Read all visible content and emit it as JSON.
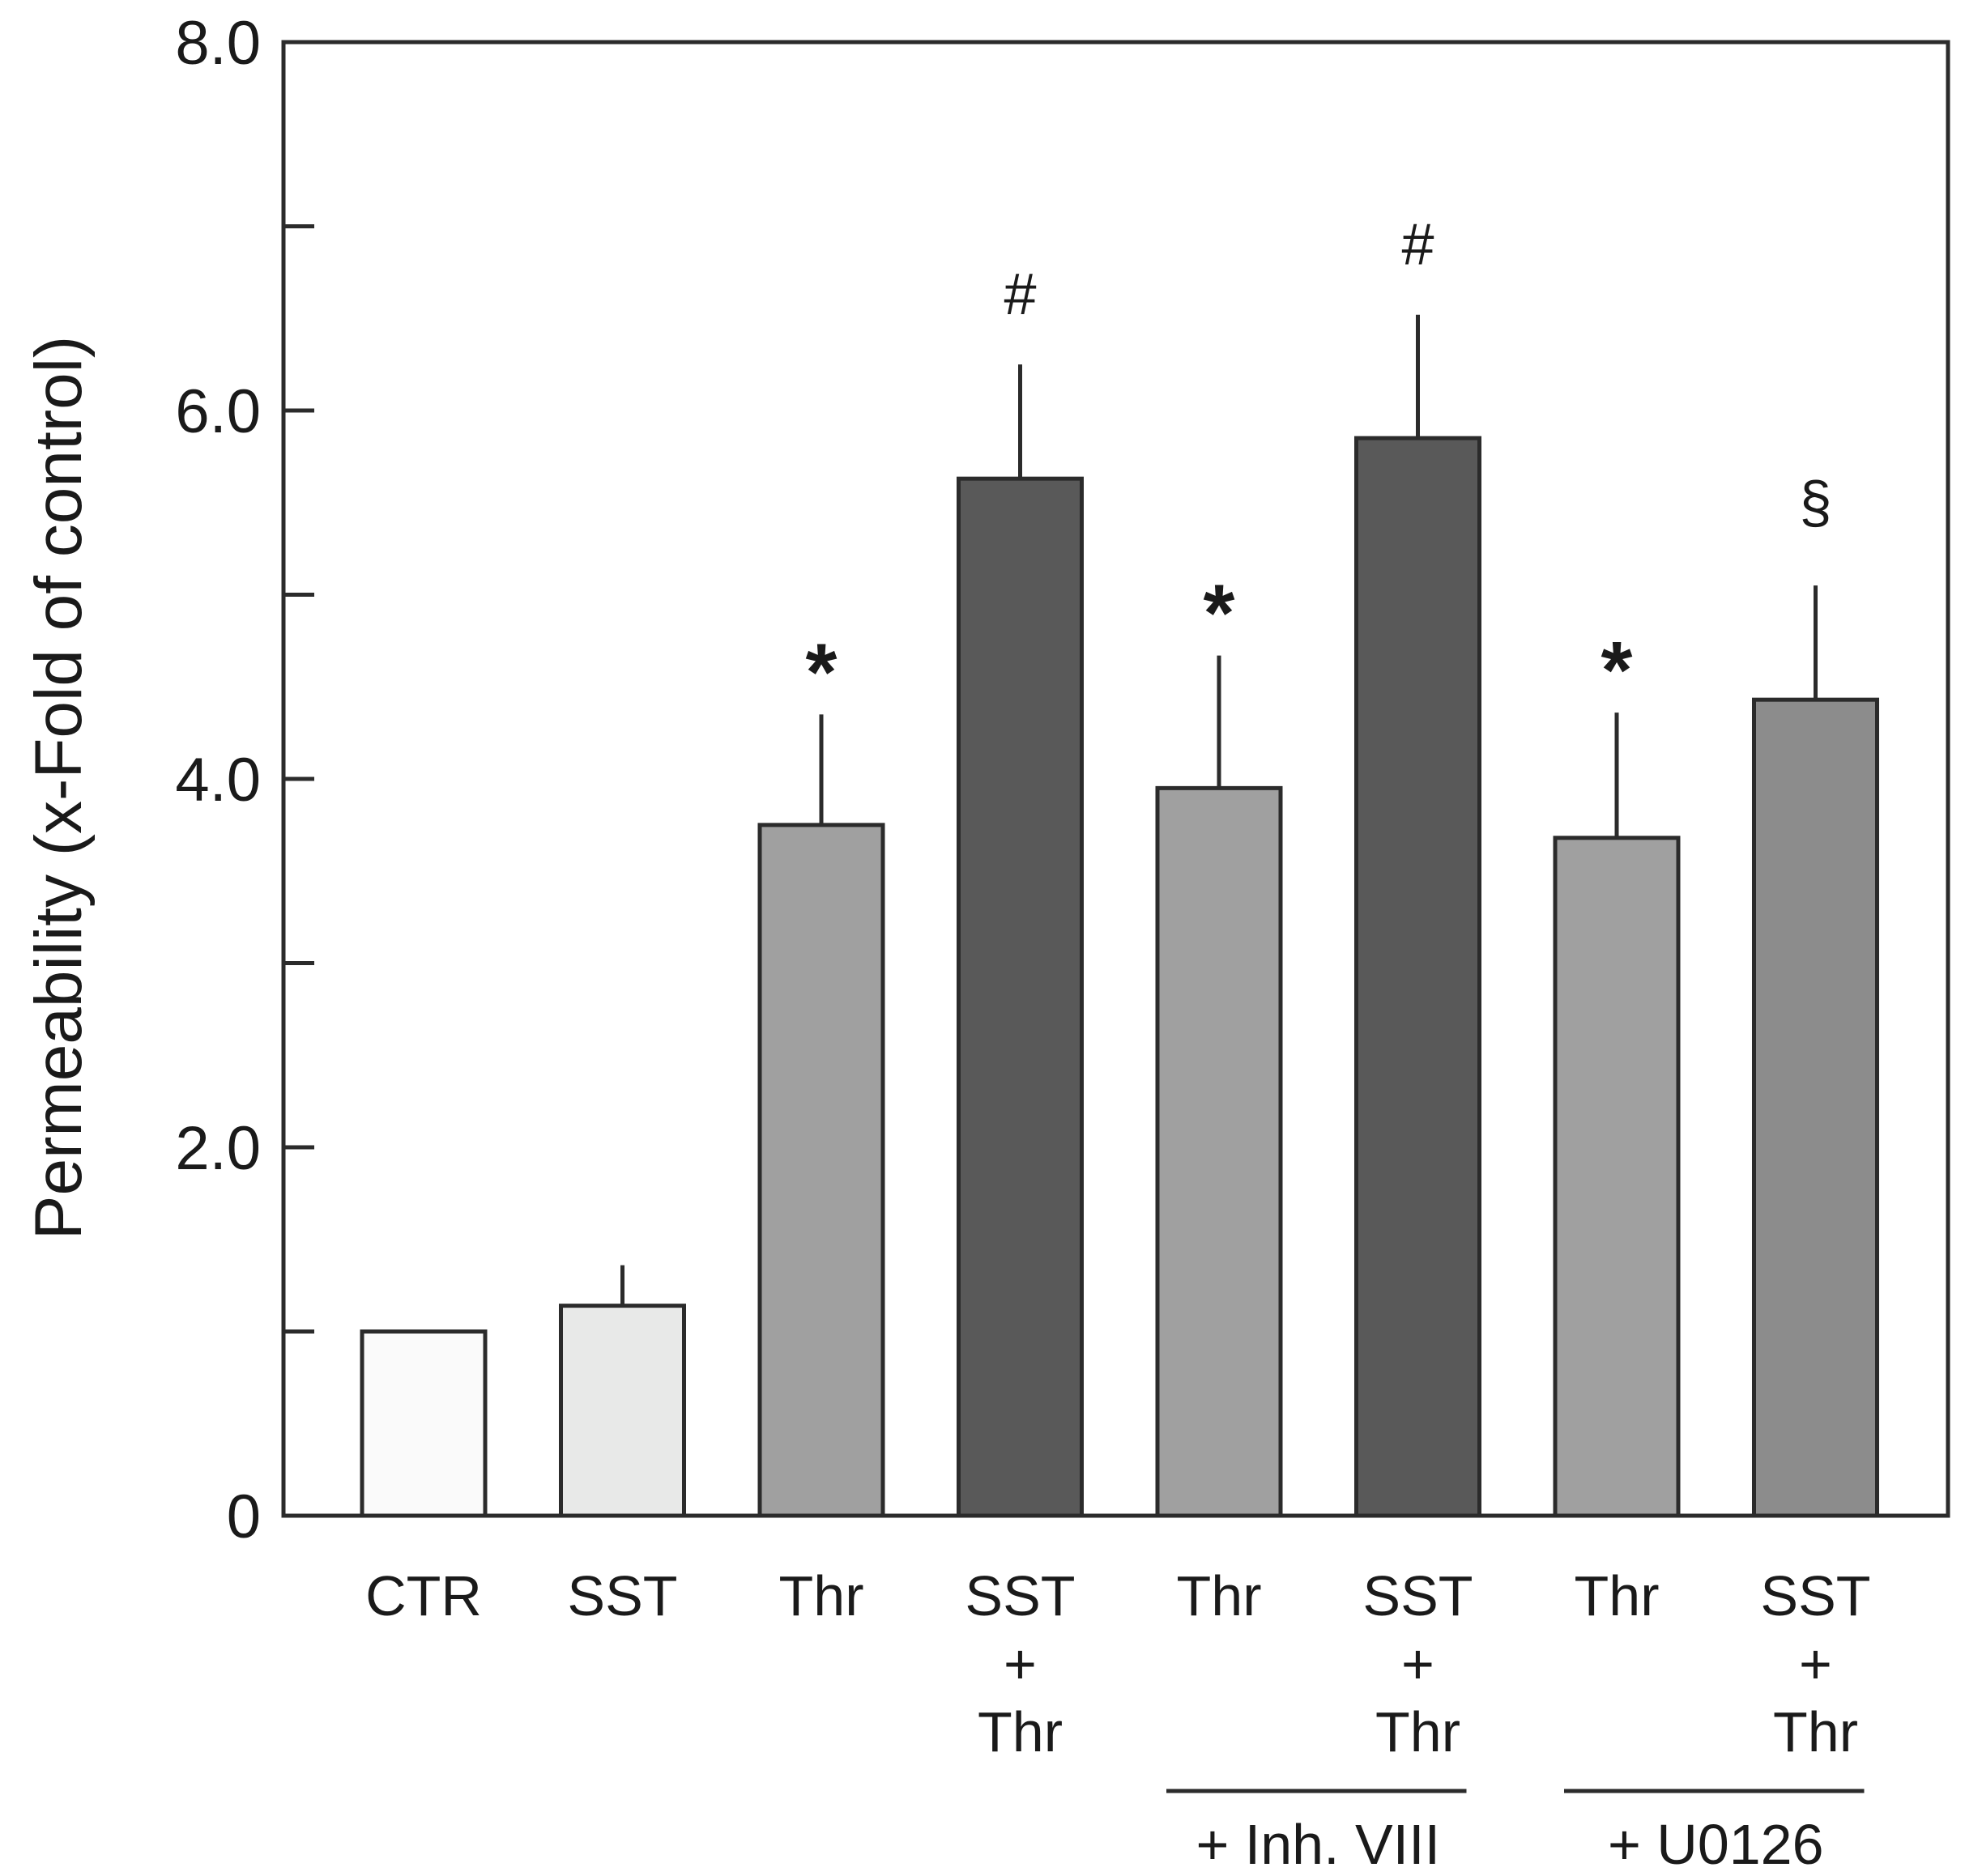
{
  "chart_data": {
    "type": "bar",
    "ylabel": "Permeability (x-Fold of control)",
    "ylim": [
      0,
      8.0
    ],
    "yticks": [
      {
        "value": 0,
        "label": "0"
      },
      {
        "value": 1,
        "label": ""
      },
      {
        "value": 2,
        "label": "2.0"
      },
      {
        "value": 3,
        "label": ""
      },
      {
        "value": 4,
        "label": "4.0"
      },
      {
        "value": 5,
        "label": ""
      },
      {
        "value": 6,
        "label": "6.0"
      },
      {
        "value": 7,
        "label": ""
      },
      {
        "value": 8,
        "label": "8.0"
      }
    ],
    "bars": [
      {
        "label_lines": [
          "CTR"
        ],
        "value": 1.0,
        "error": 0.0,
        "sig": "",
        "color": "#fafafa"
      },
      {
        "label_lines": [
          "SST"
        ],
        "value": 1.14,
        "error": 0.22,
        "sig": "",
        "color": "#e8e9e8"
      },
      {
        "label_lines": [
          "Thr"
        ],
        "value": 3.75,
        "error": 0.6,
        "sig": "*",
        "color": "#a0a0a0"
      },
      {
        "label_lines": [
          "SST",
          "+",
          "Thr"
        ],
        "value": 5.63,
        "error": 0.62,
        "sig": "#",
        "color": "#595959"
      },
      {
        "label_lines": [
          "Thr"
        ],
        "value": 3.95,
        "error": 0.72,
        "sig": "*",
        "color": "#a0a0a0"
      },
      {
        "label_lines": [
          "SST",
          "+",
          "Thr"
        ],
        "value": 5.85,
        "error": 0.67,
        "sig": "#",
        "color": "#595959"
      },
      {
        "label_lines": [
          "Thr"
        ],
        "value": 3.68,
        "error": 0.68,
        "sig": "*",
        "color": "#a0a0a0"
      },
      {
        "label_lines": [
          "SST",
          "+",
          "Thr"
        ],
        "value": 4.43,
        "error": 0.62,
        "sig": "§",
        "color": "#8c8c8c"
      }
    ],
    "groups": [
      {
        "label": "+ Inh. VIII",
        "from": 4,
        "to": 5
      },
      {
        "label": "+ U0126",
        "from": 6,
        "to": 7
      }
    ]
  }
}
